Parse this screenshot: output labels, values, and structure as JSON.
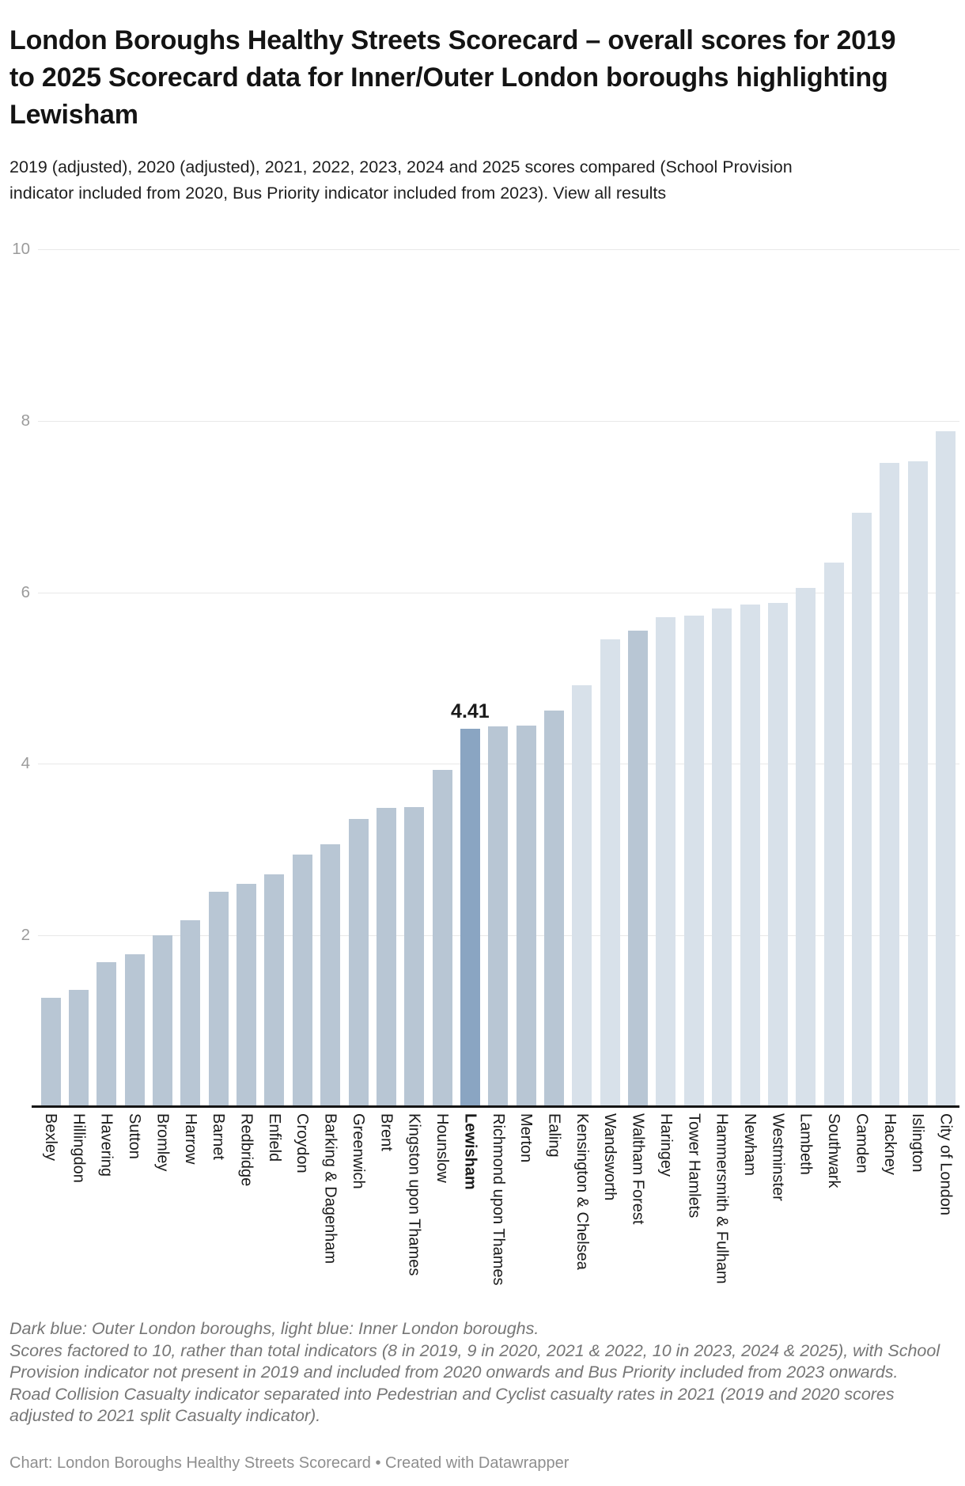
{
  "header": {
    "title": "London Boroughs Healthy Streets Scorecard – overall scores for 2019 to 2025 Scorecard data for Inner/Outer London boroughs highlighting Lewisham",
    "subtitle_text": "2019 (adjusted), 2020 (adjusted), 2021, 2022, 2023, 2024 and 2025 scores compared (School Provision indicator included from 2020, Bus Priority indicator included from 2023). ",
    "subtitle_link": "View all results"
  },
  "chart_data": {
    "type": "bar",
    "title": "London Boroughs Healthy Streets Scorecard – overall scores for 2019 to 2025",
    "categories": [
      "Bexley",
      "Hillingdon",
      "Havering",
      "Sutton",
      "Bromley",
      "Harrow",
      "Barnet",
      "Redbridge",
      "Enfield",
      "Croydon",
      "Barking & Dagenham",
      "Greenwich",
      "Brent",
      "Kingston upon Thames",
      "Hounslow",
      "Lewisham",
      "Richmond upon Thames",
      "Merton",
      "Ealing",
      "Kensington & Chelsea",
      "Wandsworth",
      "Waltham Forest",
      "Haringey",
      "Tower Hamlets",
      "Hammersmith & Fulham",
      "Newham",
      "Westminster",
      "Lambeth",
      "Southwark",
      "Camden",
      "Hackney",
      "Islington",
      "City of London"
    ],
    "values": [
      1.27,
      1.37,
      1.69,
      1.78,
      2.0,
      2.18,
      2.51,
      2.6,
      2.71,
      2.94,
      3.06,
      3.36,
      3.49,
      3.5,
      3.93,
      4.41,
      4.44,
      4.45,
      4.62,
      4.92,
      5.45,
      5.55,
      5.71,
      5.73,
      5.81,
      5.86,
      5.88,
      6.05,
      6.35,
      6.93,
      7.51,
      7.53,
      7.88
    ],
    "groups": [
      "outer",
      "outer",
      "outer",
      "outer",
      "outer",
      "outer",
      "outer",
      "outer",
      "outer",
      "outer",
      "outer",
      "outer",
      "outer",
      "outer",
      "outer",
      "lewisham",
      "outer",
      "outer",
      "outer",
      "inner",
      "inner",
      "outer",
      "inner",
      "inner",
      "inner",
      "inner",
      "inner",
      "inner",
      "inner",
      "inner",
      "inner",
      "inner",
      "inner"
    ],
    "highlight": {
      "label": "Lewisham",
      "value_label": "4.41"
    },
    "xlabel": "",
    "ylabel": "",
    "ylim": [
      0,
      10
    ],
    "yticks": [
      2,
      4,
      6,
      8,
      10
    ],
    "grid": "horizontal",
    "legend_position": "none",
    "colors": {
      "outer": "#b8c6d4",
      "inner": "#d8e1ea",
      "lewisham": "#8aa5c2"
    },
    "color_meaning": "Dark blue: Outer London boroughs, light blue: Inner London boroughs, highlighted dark bar: Lewisham"
  },
  "notes": [
    "Dark blue: Outer London boroughs, light blue: Inner London boroughs.",
    "Scores factored to 10, rather than total indicators (8 in 2019, 9 in 2020, 2021 & 2022, 10 in 2023, 2024 & 2025), with School Provision indicator not present in 2019 and included from 2020 onwards and Bus Priority included from 2023 onwards.",
    "Road Collision Casualty indicator separated into Pedestrian and Cyclist casualty rates in 2021 (2019 and 2020 scores adjusted to 2021 split Casualty indicator)."
  ],
  "byline": {
    "prefix": "Chart: London Boroughs Healthy Streets Scorecard • ",
    "link": "Created with Datawrapper"
  }
}
